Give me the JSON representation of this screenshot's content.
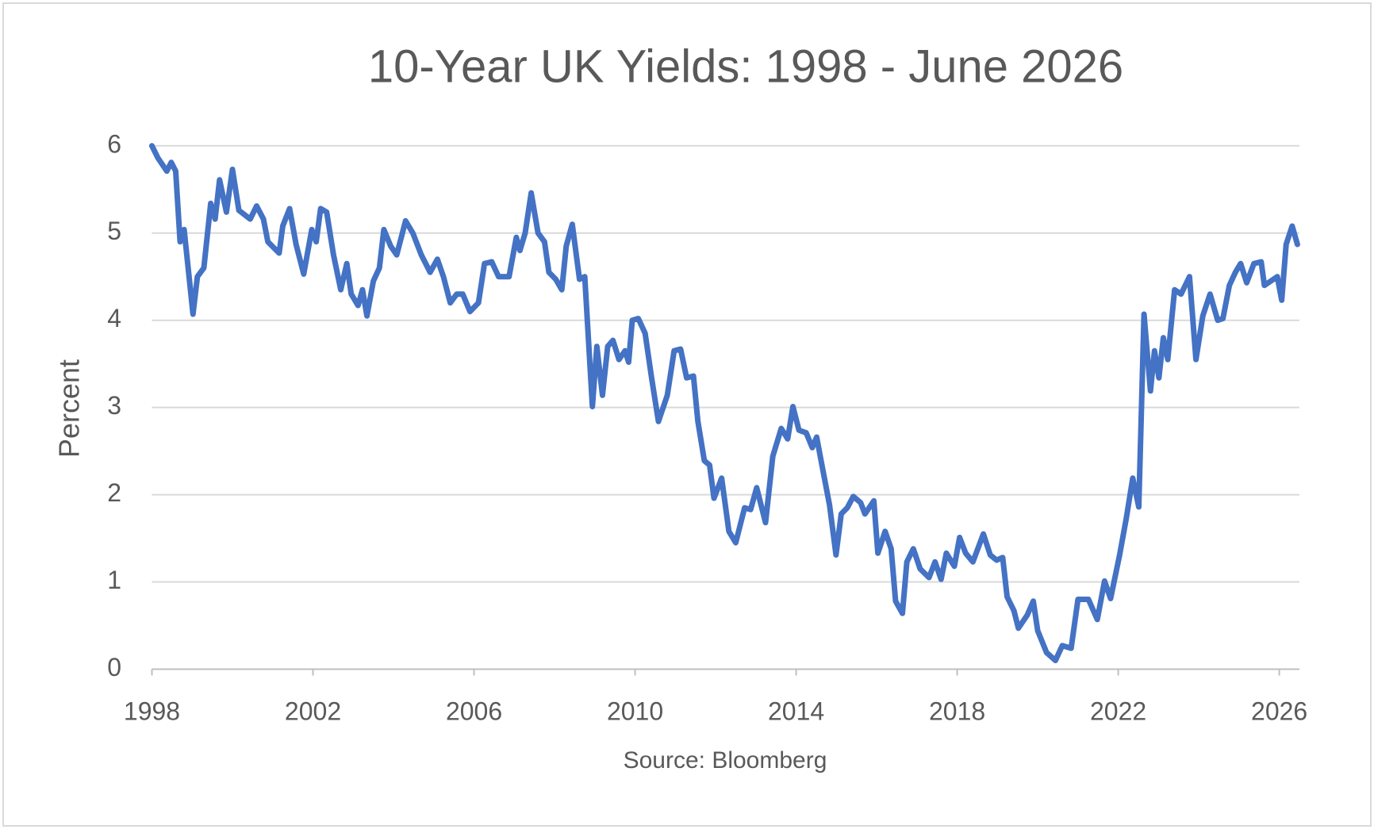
{
  "chart_data": {
    "type": "line",
    "title": "10-Year UK Yields: 1998 - June 2026",
    "ylabel": "Percent",
    "source": "Source: Bloomberg",
    "color": "#4472c4",
    "grid": true,
    "xlim": [
      1998,
      2026.5
    ],
    "xticks": [
      1998,
      2002,
      2006,
      2010,
      2014,
      2018,
      2022,
      2026
    ],
    "ylim": [
      0,
      6
    ],
    "yticks": [
      0,
      1,
      2,
      3,
      4,
      5,
      6
    ],
    "x": [
      1998.0,
      1998.15,
      1998.37,
      1998.48,
      1998.59,
      1998.7,
      1998.8,
      1999.02,
      1999.13,
      1999.29,
      1999.46,
      1999.57,
      1999.68,
      1999.85,
      2000.0,
      2000.16,
      2000.44,
      2000.6,
      2000.77,
      2000.88,
      2001.16,
      2001.25,
      2001.42,
      2001.58,
      2001.77,
      2001.97,
      2002.08,
      2002.19,
      2002.34,
      2002.51,
      2002.69,
      2002.84,
      2002.95,
      2003.12,
      2003.23,
      2003.34,
      2003.5,
      2003.65,
      2003.76,
      2003.93,
      2004.08,
      2004.3,
      2004.48,
      2004.69,
      2004.91,
      2005.09,
      2005.24,
      2005.41,
      2005.57,
      2005.72,
      2005.9,
      2006.11,
      2006.26,
      2006.44,
      2006.61,
      2006.87,
      2007.05,
      2007.14,
      2007.27,
      2007.42,
      2007.59,
      2007.75,
      2007.86,
      2008.03,
      2008.18,
      2008.29,
      2008.44,
      2008.62,
      2008.75,
      2008.94,
      2009.05,
      2009.19,
      2009.32,
      2009.45,
      2009.6,
      2009.75,
      2009.84,
      2009.93,
      2010.08,
      2010.25,
      2010.41,
      2010.58,
      2010.8,
      2010.97,
      2011.13,
      2011.28,
      2011.45,
      2011.56,
      2011.72,
      2011.85,
      2011.96,
      2012.15,
      2012.33,
      2012.5,
      2012.72,
      2012.87,
      2013.02,
      2013.24,
      2013.42,
      2013.63,
      2013.79,
      2013.92,
      2014.07,
      2014.25,
      2014.4,
      2014.51,
      2014.62,
      2014.83,
      2014.99,
      2015.12,
      2015.27,
      2015.42,
      2015.6,
      2015.71,
      2015.93,
      2016.03,
      2016.21,
      2016.36,
      2016.47,
      2016.64,
      2016.75,
      2016.91,
      2017.08,
      2017.3,
      2017.45,
      2017.6,
      2017.73,
      2017.93,
      2018.06,
      2018.21,
      2018.39,
      2018.65,
      2018.82,
      2018.98,
      2019.13,
      2019.24,
      2019.41,
      2019.52,
      2019.74,
      2019.89,
      2020.0,
      2020.22,
      2020.44,
      2020.61,
      2020.83,
      2021.0,
      2021.26,
      2021.48,
      2021.66,
      2021.81,
      2022.03,
      2022.2,
      2022.36,
      2022.51,
      2022.64,
      2022.8,
      2022.9,
      2023.01,
      2023.12,
      2023.23,
      2023.4,
      2023.56,
      2023.77,
      2023.93,
      2024.1,
      2024.28,
      2024.47,
      2024.6,
      2024.76,
      2024.91,
      2025.04,
      2025.19,
      2025.37,
      2025.55,
      2025.63,
      2025.95,
      2026.06,
      2026.17,
      2026.32,
      2026.45
    ],
    "values": [
      6.0,
      5.86,
      5.71,
      5.81,
      5.71,
      4.9,
      5.04,
      4.07,
      4.5,
      4.6,
      5.34,
      5.16,
      5.61,
      5.24,
      5.73,
      5.26,
      5.16,
      5.31,
      5.16,
      4.9,
      4.77,
      5.08,
      5.28,
      4.87,
      4.53,
      5.04,
      4.9,
      5.28,
      5.24,
      4.75,
      4.35,
      4.65,
      4.3,
      4.17,
      4.35,
      4.05,
      4.45,
      4.6,
      5.04,
      4.85,
      4.75,
      5.14,
      5.0,
      4.75,
      4.55,
      4.7,
      4.5,
      4.2,
      4.3,
      4.3,
      4.1,
      4.2,
      4.65,
      4.67,
      4.5,
      4.5,
      4.95,
      4.8,
      5.0,
      5.46,
      5.0,
      4.9,
      4.55,
      4.47,
      4.35,
      4.85,
      5.1,
      4.47,
      4.5,
      3.01,
      3.7,
      3.14,
      3.7,
      3.77,
      3.55,
      3.65,
      3.52,
      4.0,
      4.02,
      3.85,
      3.34,
      2.84,
      3.14,
      3.65,
      3.67,
      3.34,
      3.36,
      2.84,
      2.39,
      2.34,
      1.96,
      2.19,
      1.58,
      1.45,
      1.85,
      1.83,
      2.08,
      1.68,
      2.44,
      2.76,
      2.64,
      3.01,
      2.74,
      2.71,
      2.54,
      2.66,
      2.39,
      1.88,
      1.31,
      1.78,
      1.85,
      1.98,
      1.91,
      1.78,
      1.93,
      1.33,
      1.58,
      1.38,
      0.78,
      0.64,
      1.23,
      1.38,
      1.15,
      1.05,
      1.23,
      1.03,
      1.33,
      1.18,
      1.51,
      1.33,
      1.23,
      1.55,
      1.31,
      1.25,
      1.28,
      0.83,
      0.67,
      0.47,
      0.62,
      0.78,
      0.44,
      0.19,
      0.1,
      0.27,
      0.24,
      0.8,
      0.8,
      0.57,
      1.01,
      0.81,
      1.3,
      1.73,
      2.19,
      1.86,
      4.07,
      3.19,
      3.65,
      3.34,
      3.8,
      3.55,
      4.35,
      4.3,
      4.5,
      3.55,
      4.05,
      4.3,
      4.0,
      4.02,
      4.4,
      4.55,
      4.65,
      4.43,
      4.65,
      4.67,
      4.4,
      4.5,
      4.23,
      4.87,
      5.08,
      4.87
    ]
  }
}
